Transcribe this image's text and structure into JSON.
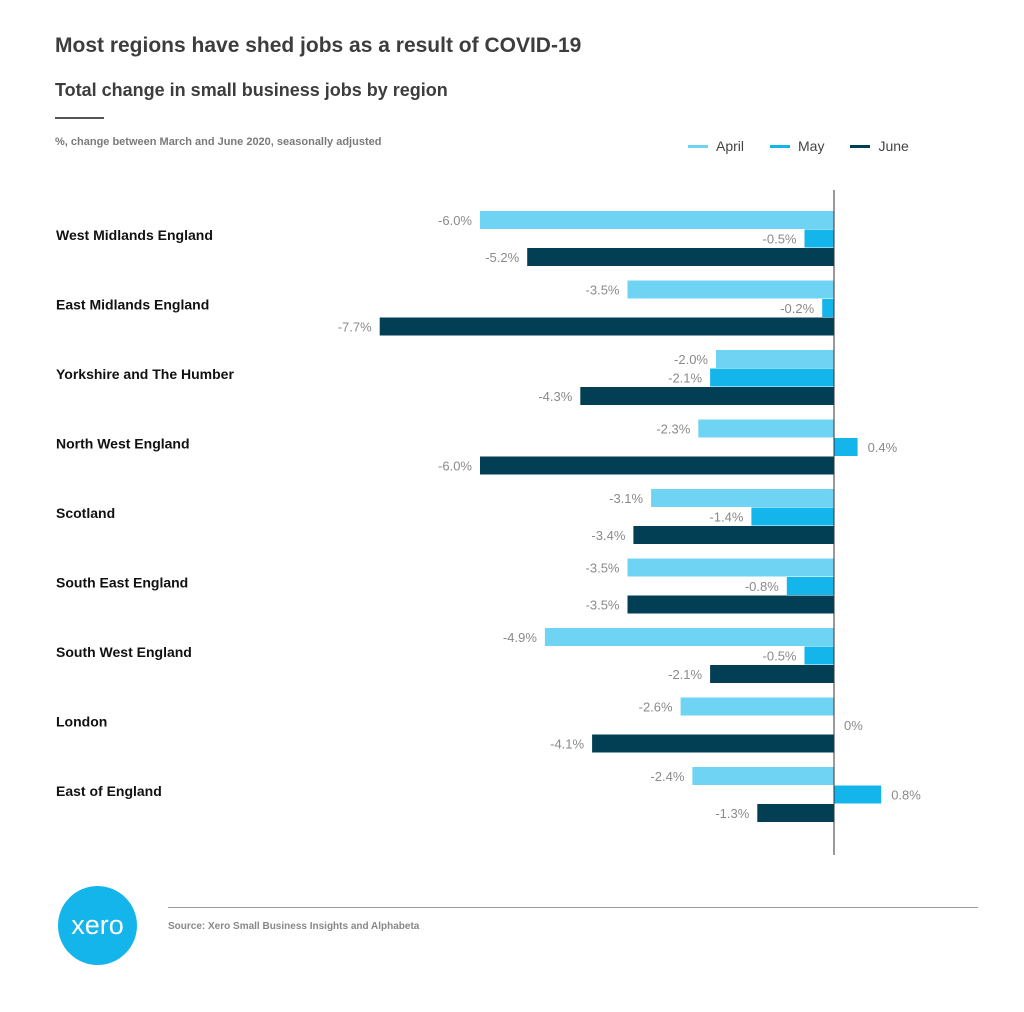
{
  "chart_data": {
    "type": "bar",
    "orientation": "horizontal",
    "title": "Most regions have shed jobs as a result of COVID-19",
    "subtitle": "Total change in small business jobs by region",
    "note": "%, change between March and June 2020, seasonally adjusted",
    "categories": [
      "West Midlands England",
      "East Midlands England",
      "Yorkshire and The Humber",
      "North West England",
      "Scotland",
      "South East England",
      "South West England",
      "London",
      "East of England"
    ],
    "series": [
      {
        "name": "April",
        "color": "#6fd3f3",
        "values": [
          -6.0,
          -3.5,
          -2.0,
          -2.3,
          -3.1,
          -3.5,
          -4.9,
          -2.6,
          -2.4
        ],
        "labels": [
          "-6.0%",
          "-3.5%",
          "-2.0%",
          "-2.3%",
          "-3.1%",
          "-3.5%",
          "-4.9%",
          "-2.6%",
          "-2.4%"
        ]
      },
      {
        "name": "May",
        "color": "#13b5ea",
        "values": [
          -0.5,
          -0.2,
          -2.1,
          0.4,
          -1.4,
          -0.8,
          -0.5,
          0,
          0.8
        ],
        "labels": [
          "-0.5%",
          "-0.2%",
          "-2.1%",
          "0.4%",
          "-1.4%",
          "-0.8%",
          "-0.5%",
          "0%",
          "0.8%"
        ]
      },
      {
        "name": "June",
        "color": "#023f54",
        "values": [
          -5.2,
          -7.7,
          -4.3,
          -6.0,
          -3.4,
          -3.5,
          -2.1,
          -4.1,
          -1.3
        ],
        "labels": [
          "-5.2%",
          "-7.7%",
          "-4.3%",
          "-6.0%",
          "-3.4%",
          "-3.5%",
          "-2.1%",
          "-4.1%",
          "-1.3%"
        ]
      }
    ],
    "xlim": [
      -7.7,
      2.4
    ],
    "grid": false,
    "legend_position": "top-right"
  },
  "footer": {
    "source": "Source: Xero Small Business Insights and Alphabeta",
    "logo_text": "xero"
  }
}
